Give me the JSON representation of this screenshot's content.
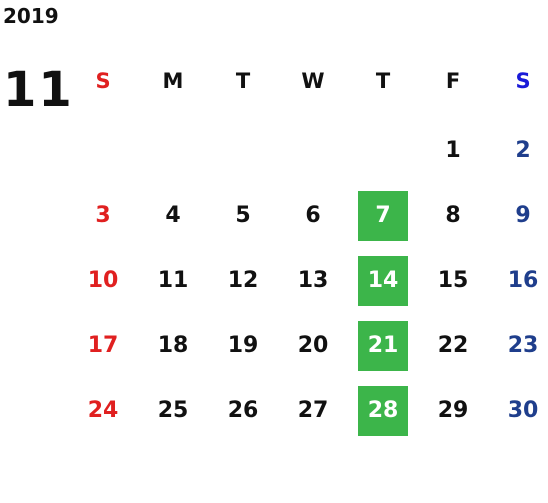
{
  "year": "2019",
  "month": "11",
  "weekdays": [
    "S",
    "M",
    "T",
    "W",
    "T",
    "F",
    "S"
  ],
  "weeks": [
    [
      null,
      null,
      null,
      null,
      null,
      1,
      2
    ],
    [
      3,
      4,
      5,
      6,
      7,
      8,
      9
    ],
    [
      10,
      11,
      12,
      13,
      14,
      15,
      16
    ],
    [
      17,
      18,
      19,
      20,
      21,
      22,
      23
    ],
    [
      24,
      25,
      26,
      27,
      28,
      29,
      30
    ]
  ]
}
